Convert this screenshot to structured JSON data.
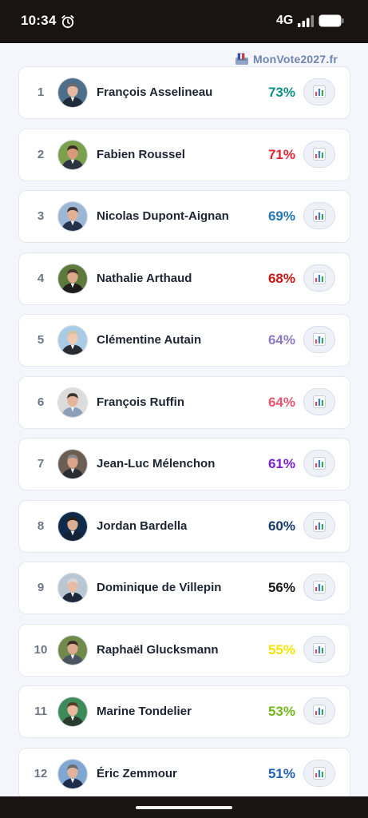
{
  "status_bar": {
    "time": "10:34",
    "network": "4G",
    "icons": [
      "alarm-icon",
      "signal-icon",
      "battery-icon"
    ]
  },
  "brand": {
    "text": "MonVote2027.fr",
    "icon": "ballot-box-icon",
    "color": "#6f86b4"
  },
  "candidates": [
    {
      "rank": "1",
      "name": "François Asselineau",
      "score": "73%",
      "color": "#0f8e82",
      "skin": "#e7b9a0",
      "hair": "#6b6b6b",
      "suit": "#1f2a3a",
      "bg": "#4d6f8a"
    },
    {
      "rank": "2",
      "name": "Fabien Roussel",
      "score": "71%",
      "color": "#e0232e",
      "skin": "#d99a7c",
      "hair": "#3a2a22",
      "suit": "#2b3440",
      "bg": "#7aa04b"
    },
    {
      "rank": "3",
      "name": "Nicolas Dupont-Aignan",
      "score": "69%",
      "color": "#2476b8",
      "skin": "#e3b096",
      "hair": "#3c3632",
      "suit": "#23314a",
      "bg": "#9cb6d6"
    },
    {
      "rank": "4",
      "name": "Nathalie Arthaud",
      "score": "68%",
      "color": "#c81414",
      "skin": "#dca98d",
      "hair": "#4a3328",
      "suit": "#1d1d1d",
      "bg": "#5d7a3d"
    },
    {
      "rank": "5",
      "name": "Clémentine Autain",
      "score": "64%",
      "color": "#8a7bc4",
      "skin": "#f0c9b3",
      "hair": "#d6c2a0",
      "suit": "#2a2a33",
      "bg": "#a8cbe6"
    },
    {
      "rank": "6",
      "name": "François Ruffin",
      "score": "64%",
      "color": "#e9546b",
      "skin": "#e4b59c",
      "hair": "#3b332d",
      "suit": "#8aa0b8",
      "bg": "#dcdcdc"
    },
    {
      "rank": "7",
      "name": "Jean-Luc Mélenchon",
      "score": "61%",
      "color": "#7a1fd1",
      "skin": "#d9a48a",
      "hair": "#8a8a8a",
      "suit": "#2b2b33",
      "bg": "#6b5e52"
    },
    {
      "rank": "8",
      "name": "Jordan Bardella",
      "score": "60%",
      "color": "#163b66",
      "skin": "#dcae93",
      "hair": "#2a1f19",
      "suit": "#142238",
      "bg": "#0f2a4a"
    },
    {
      "rank": "9",
      "name": "Dominique de Villepin",
      "score": "56%",
      "color": "#1a1a1a",
      "skin": "#e6bca6",
      "hair": "#d8d8d8",
      "suit": "#1e2a3c",
      "bg": "#b9c6d3"
    },
    {
      "rank": "10",
      "name": "Raphaël Glucksmann",
      "score": "55%",
      "color": "#f5e400",
      "skin": "#dcab8f",
      "hair": "#3a2e27",
      "suit": "#4a5560",
      "bg": "#6f8a4a"
    },
    {
      "rank": "11",
      "name": "Marine Tondelier",
      "score": "53%",
      "color": "#72b51e",
      "skin": "#e8b99e",
      "hair": "#5a3a27",
      "suit": "#2b3a2e",
      "bg": "#3d8a5a"
    },
    {
      "rank": "12",
      "name": "Éric Zemmour",
      "score": "51%",
      "color": "#1f5fb4",
      "skin": "#e0b39a",
      "hair": "#6a6a6a",
      "suit": "#1d2c4a",
      "bg": "#7fa7d1"
    }
  ]
}
